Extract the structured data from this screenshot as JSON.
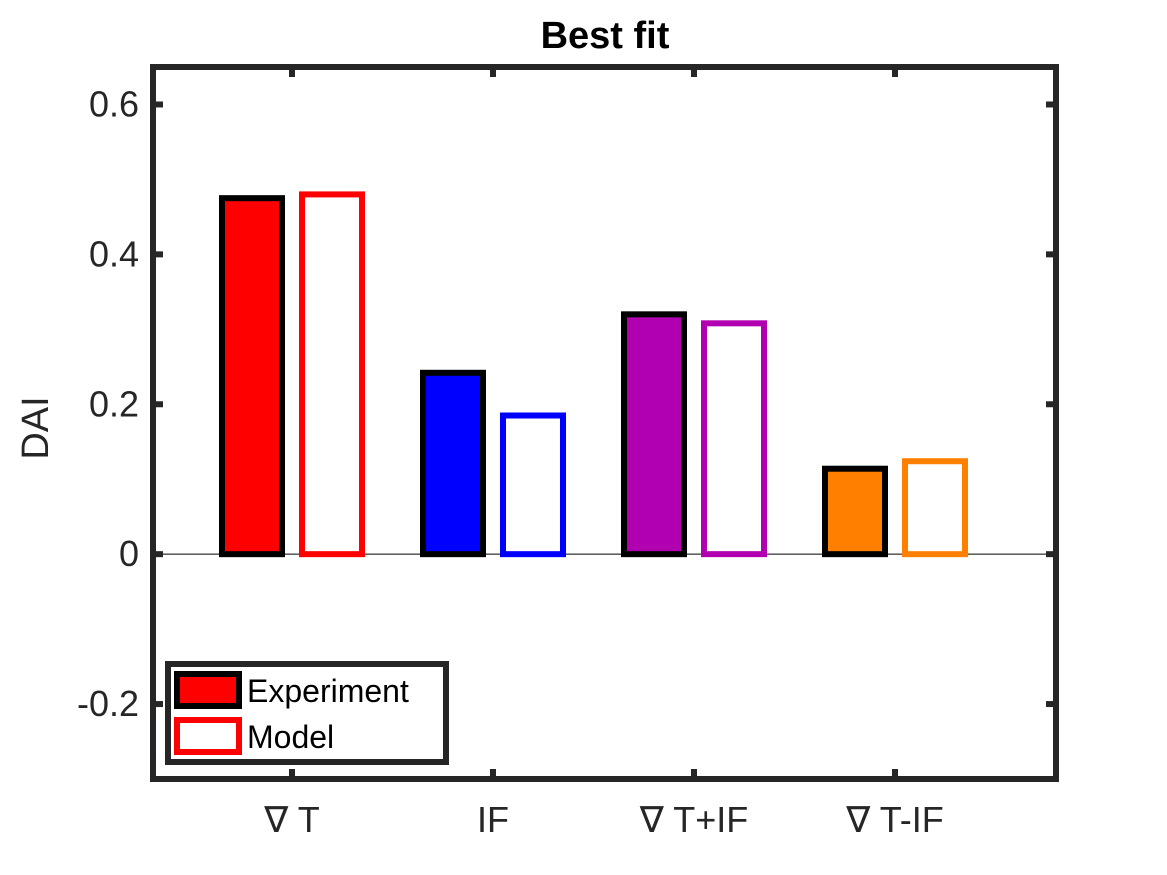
{
  "chart_data": {
    "type": "bar",
    "title": "Best fit",
    "xlabel": "",
    "ylabel": "DAI",
    "categories": [
      "∇ T",
      "IF",
      "∇ T+IF",
      "∇ T-IF"
    ],
    "ylim": [
      -0.3,
      0.65
    ],
    "yticks": [
      -0.2,
      0,
      0.2,
      0.4,
      0.6
    ],
    "ytick_labels": [
      "-0.2",
      "0",
      "0.2",
      "0.4",
      "0.6"
    ],
    "category_colors": [
      "#ff0000",
      "#0000ff",
      "#b000b0",
      "#ff8000"
    ],
    "series": [
      {
        "name": "Experiment",
        "style": "filled",
        "edge_color": "#000000",
        "values": [
          0.475,
          0.242,
          0.32,
          0.114
        ]
      },
      {
        "name": "Model",
        "style": "outline",
        "values": [
          0.48,
          0.185,
          0.308,
          0.124
        ]
      }
    ],
    "legend": {
      "position": "bottom-left",
      "entries": [
        {
          "label": "Experiment",
          "fill": "#ff0000",
          "edge": "#000000"
        },
        {
          "label": "Model",
          "fill": "#ffffff",
          "edge": "#ff0000"
        }
      ]
    },
    "grid": false,
    "zero_line": true
  }
}
